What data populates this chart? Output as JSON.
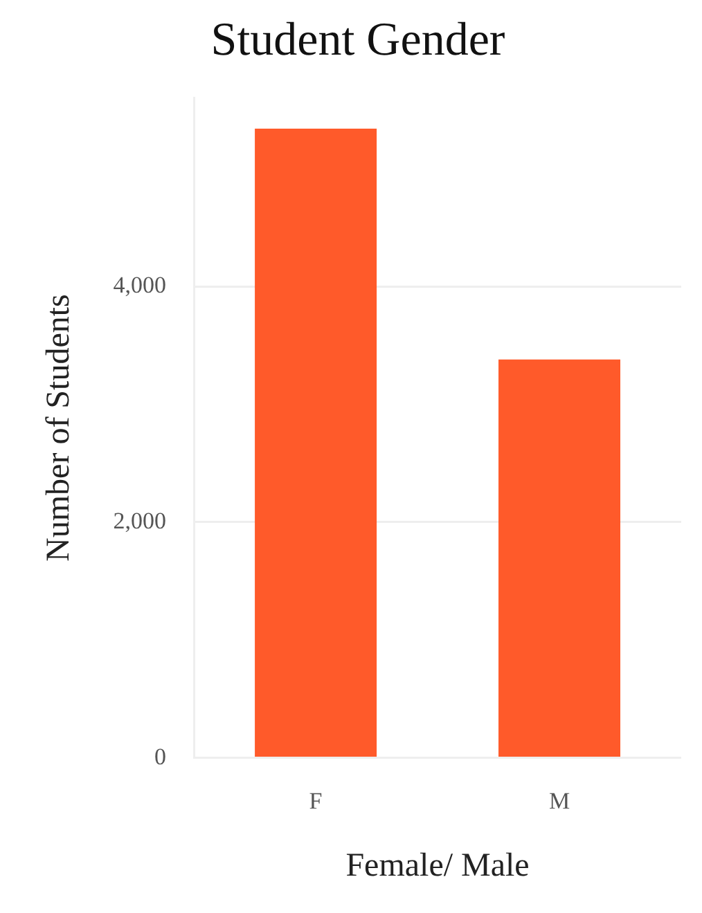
{
  "chart_data": {
    "type": "bar",
    "title": "Student Gender",
    "xlabel": "Female/ Male",
    "ylabel": "Number of Students",
    "categories": [
      "F",
      "M"
    ],
    "values": [
      5340,
      3380
    ],
    "color": "#ff5a2a",
    "ylim": [
      0,
      5600
    ],
    "yticks": [
      0,
      {
        "value": 2000,
        "label": "2,000"
      },
      {
        "value": 4000,
        "label": "4,000"
      }
    ],
    "grid": "y",
    "legend": false
  }
}
